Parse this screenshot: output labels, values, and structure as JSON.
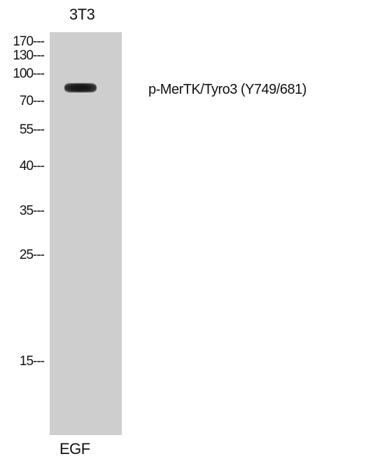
{
  "sample": "3T3",
  "markers": [
    {
      "label": "170---",
      "kda": 170
    },
    {
      "label": "130---",
      "kda": 130
    },
    {
      "label": "100---",
      "kda": 100
    },
    {
      "label": "70---",
      "kda": 70
    },
    {
      "label": "55---",
      "kda": 55
    },
    {
      "label": "40---",
      "kda": 40
    },
    {
      "label": "35---",
      "kda": 35
    },
    {
      "label": "25---",
      "kda": 25
    },
    {
      "label": "15---",
      "kda": 15
    }
  ],
  "target": "p-MerTK/Tyro3 (Y749/681)",
  "treatment": "EGF"
}
